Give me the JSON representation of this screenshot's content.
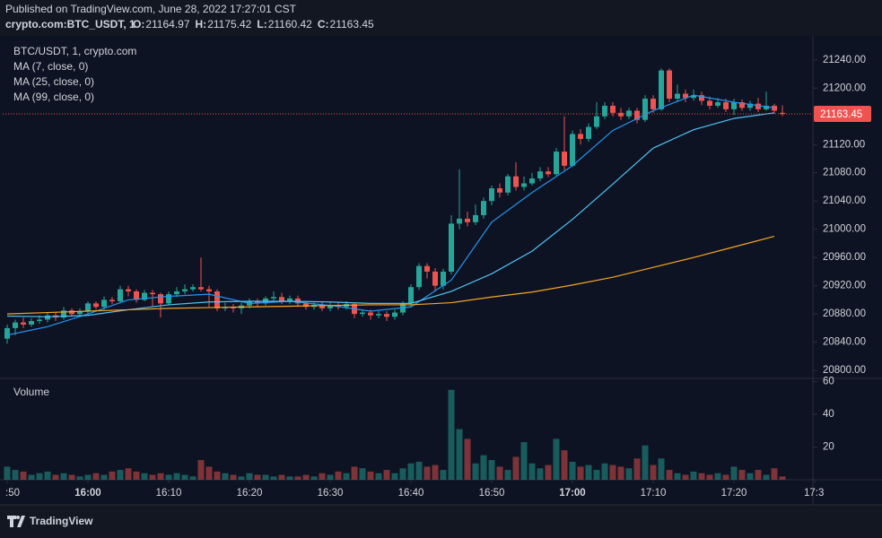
{
  "header": {
    "published": "Published on TradingView.com, June 28, 2022 17:27:01 CST",
    "symbol": "crypto.com:BTC_USDT, 1",
    "ohlc": [
      {
        "label": "O:",
        "value": 21164.97
      },
      {
        "label": "H:",
        "value": 21175.42
      },
      {
        "label": "L:",
        "value": 21160.42
      },
      {
        "label": "C:",
        "value": 21163.45
      }
    ]
  },
  "footer": {
    "logo": "TradingView"
  },
  "chart_data": {
    "type": "candlestick",
    "title": "BTC/USDT, 1, crypto.com",
    "volume_title": "Volume",
    "up_color": "#26a69a",
    "down_color": "#ef5350",
    "grid": false,
    "x": [
      "15:50",
      "15:51",
      "15:52",
      "15:53",
      "15:54",
      "15:55",
      "15:56",
      "15:57",
      "15:58",
      "15:59",
      "16:00",
      "16:01",
      "16:02",
      "16:03",
      "16:04",
      "16:05",
      "16:06",
      "16:07",
      "16:08",
      "16:09",
      "16:10",
      "16:11",
      "16:12",
      "16:13",
      "16:14",
      "16:15",
      "16:16",
      "16:17",
      "16:18",
      "16:19",
      "16:20",
      "16:21",
      "16:22",
      "16:23",
      "16:24",
      "16:25",
      "16:26",
      "16:27",
      "16:28",
      "16:29",
      "16:30",
      "16:31",
      "16:32",
      "16:33",
      "16:34",
      "16:35",
      "16:36",
      "16:37",
      "16:38",
      "16:39",
      "16:40",
      "16:41",
      "16:42",
      "16:43",
      "16:44",
      "16:45",
      "16:46",
      "16:47",
      "16:48",
      "16:49",
      "16:50",
      "16:51",
      "16:52",
      "16:53",
      "16:54",
      "16:55",
      "16:56",
      "16:57",
      "16:58",
      "16:59",
      "17:00",
      "17:01",
      "17:02",
      "17:03",
      "17:04",
      "17:05",
      "17:06",
      "17:07",
      "17:08",
      "17:09",
      "17:10",
      "17:11",
      "17:12",
      "17:13",
      "17:14",
      "17:15",
      "17:16",
      "17:17",
      "17:18",
      "17:19",
      "17:20",
      "17:21",
      "17:22",
      "17:23",
      "17:24",
      "17:25",
      "17:26"
    ],
    "open": [
      20845,
      20860,
      20868,
      20865,
      20870,
      20872,
      20878,
      20875,
      20885,
      20880,
      20884,
      20895,
      20890,
      20900,
      20898,
      20915,
      20912,
      20900,
      20910,
      20908,
      20895,
      20908,
      20912,
      20915,
      20918,
      20915,
      20912,
      20888,
      20890,
      20888,
      20892,
      20898,
      20895,
      20902,
      20904,
      20898,
      20902,
      20895,
      20890,
      20893,
      20888,
      20892,
      20890,
      20894,
      20880,
      20882,
      20878,
      20880,
      20876,
      20882,
      20895,
      20918,
      20948,
      20940,
      20920,
      20940,
      21008,
      21015,
      21010,
      21020,
      21040,
      21058,
      21052,
      21075,
      21060,
      21065,
      21072,
      21082,
      21078,
      21110,
      21090,
      21135,
      21128,
      21145,
      21160,
      21175,
      21165,
      21160,
      21168,
      21155,
      21185,
      21170,
      21225,
      21185,
      21192,
      21186,
      21190,
      21182,
      21175,
      21180,
      21170,
      21180,
      21172,
      21178,
      21170,
      21175,
      21164.97
    ],
    "high": [
      20865,
      20872,
      20875,
      20874,
      20878,
      20882,
      20882,
      20890,
      20888,
      20888,
      20898,
      20898,
      20905,
      20904,
      20920,
      20920,
      20915,
      20914,
      20914,
      20910,
      20912,
      20918,
      20922,
      20922,
      20960,
      20920,
      20915,
      20896,
      20894,
      20896,
      20902,
      20902,
      20905,
      20912,
      20910,
      20906,
      20906,
      20898,
      20897,
      20898,
      20896,
      20896,
      20898,
      20896,
      20886,
      20886,
      20884,
      20884,
      20886,
      20898,
      20922,
      20952,
      20952,
      20945,
      20944,
      21020,
      21085,
      21025,
      21035,
      21045,
      21062,
      21065,
      21078,
      21095,
      21075,
      21080,
      21088,
      21088,
      21115,
      21160,
      21140,
      21142,
      21150,
      21180,
      21180,
      21180,
      21172,
      21172,
      21172,
      21190,
      21190,
      21228,
      21228,
      21205,
      21198,
      21198,
      21195,
      21188,
      21186,
      21185,
      21185,
      21184,
      21182,
      21186,
      21195,
      21178,
      21175.42
    ],
    "low": [
      20838,
      20850,
      20860,
      20862,
      20866,
      20868,
      20870,
      20872,
      20876,
      20876,
      20880,
      20886,
      20886,
      20894,
      20895,
      20905,
      20896,
      20898,
      20890,
      20875,
      20892,
      20904,
      20908,
      20912,
      20912,
      20890,
      20884,
      20884,
      20882,
      20880,
      20888,
      20890,
      20892,
      20898,
      20894,
      20894,
      20890,
      20886,
      20886,
      20884,
      20884,
      20886,
      20886,
      20874,
      20876,
      20872,
      20874,
      20870,
      20872,
      20878,
      20890,
      20914,
      20930,
      20912,
      20915,
      20936,
      21000,
      21004,
      21006,
      21015,
      21034,
      21045,
      21048,
      21055,
      21055,
      21062,
      21068,
      21074,
      21076,
      21084,
      21088,
      21120,
      21124,
      21142,
      21156,
      21160,
      21155,
      21156,
      21150,
      21152,
      21165,
      21168,
      21180,
      21180,
      21180,
      21182,
      21176,
      21170,
      21172,
      21166,
      21162,
      21168,
      21168,
      21166,
      21168,
      21164,
      21160.42
    ],
    "close": [
      20860,
      20868,
      20865,
      20870,
      20872,
      20878,
      20875,
      20885,
      20880,
      20884,
      20895,
      20890,
      20900,
      20898,
      20915,
      20912,
      20900,
      20910,
      20908,
      20895,
      20908,
      20912,
      20915,
      20918,
      20915,
      20912,
      20888,
      20890,
      20888,
      20892,
      20898,
      20895,
      20902,
      20904,
      20898,
      20902,
      20895,
      20890,
      20893,
      20888,
      20892,
      20890,
      20894,
      20880,
      20882,
      20878,
      20880,
      20876,
      20882,
      20895,
      20918,
      20948,
      20940,
      20920,
      20940,
      21008,
      21015,
      21010,
      21020,
      21040,
      21058,
      21052,
      21075,
      21060,
      21065,
      21072,
      21082,
      21078,
      21110,
      21090,
      21135,
      21128,
      21145,
      21160,
      21175,
      21165,
      21160,
      21168,
      21155,
      21185,
      21170,
      21225,
      21185,
      21192,
      21186,
      21190,
      21182,
      21175,
      21180,
      21170,
      21180,
      21172,
      21178,
      21170,
      21175,
      21168,
      21163.45
    ],
    "volume": [
      8,
      6,
      5,
      3,
      4,
      5,
      3,
      4,
      3,
      2,
      3,
      4,
      3,
      5,
      6,
      7,
      5,
      4,
      3,
      4,
      3,
      4,
      3,
      2,
      12,
      8,
      5,
      4,
      3,
      2,
      4,
      3,
      3,
      2,
      3,
      2,
      2,
      3,
      2,
      4,
      3,
      5,
      4,
      8,
      7,
      5,
      4,
      6,
      4,
      7,
      10,
      11,
      8,
      9,
      6,
      55,
      31,
      25,
      10,
      15,
      12,
      8,
      6,
      14,
      23,
      10,
      7,
      9,
      25,
      18,
      11,
      8,
      9,
      6,
      10,
      9,
      8,
      7,
      13,
      21,
      9,
      13,
      6,
      4,
      3,
      5,
      4,
      3,
      4,
      3,
      8,
      6,
      4,
      6,
      3,
      7,
      2
    ],
    "ma_series": [
      {
        "name": "MA (7, close, 0)",
        "color": "#2196f3",
        "x": [
          "15:50",
          "15:55",
          "16:00",
          "16:05",
          "16:10",
          "16:15",
          "16:20",
          "16:25",
          "16:30",
          "16:35",
          "16:40",
          "16:45",
          "16:50",
          "16:55",
          "17:00",
          "17:05",
          "17:10",
          "17:15",
          "17:20",
          "17:25"
        ],
        "values": [
          20850,
          20862,
          20880,
          20900,
          20905,
          20908,
          20895,
          20898,
          20892,
          20884,
          20890,
          20928,
          21010,
          21052,
          21090,
          21140,
          21168,
          21190,
          21180,
          21172
        ]
      },
      {
        "name": "MA (25, close, 0)",
        "color": "#4fc3f7",
        "x": [
          "15:50",
          "15:55",
          "16:00",
          "16:05",
          "16:10",
          "16:15",
          "16:20",
          "16:25",
          "16:30",
          "16:35",
          "16:40",
          "16:45",
          "16:50",
          "16:55",
          "17:00",
          "17:05",
          "17:10",
          "17:15",
          "17:20",
          "17:25"
        ],
        "values": [
          20877,
          20876,
          20878,
          20886,
          20893,
          20897,
          20898,
          20898,
          20897,
          20895,
          20895,
          20912,
          20937,
          20969,
          21014,
          21064,
          21115,
          21141,
          21157,
          21165
        ]
      },
      {
        "name": "MA (99, close, 0)",
        "color": "#f5a623",
        "x": [
          "15:50",
          "15:55",
          "16:00",
          "16:05",
          "16:10",
          "16:15",
          "16:20",
          "16:25",
          "16:30",
          "16:35",
          "16:40",
          "16:45",
          "16:50",
          "16:55",
          "17:00",
          "17:05",
          "17:10",
          "17:15",
          "17:20",
          "17:25"
        ],
        "values": [
          20880,
          20882,
          20884,
          20886,
          20888,
          20889,
          20890,
          20891,
          20892,
          20893,
          20893,
          20896,
          20904,
          20911,
          20921,
          20932,
          20946,
          20960,
          20975,
          20990
        ]
      }
    ],
    "ylim": [
      20790,
      21274
    ],
    "yticks": [
      {
        "value": 20800,
        "label": "20800.00"
      },
      {
        "value": 20840,
        "label": "20840.00"
      },
      {
        "value": 20880,
        "label": "20880.00"
      },
      {
        "value": 20920,
        "label": "20920.00"
      },
      {
        "value": 20960,
        "label": "20960.00"
      },
      {
        "value": 21000,
        "label": "21000.00"
      },
      {
        "value": 21040,
        "label": "21040.00"
      },
      {
        "value": 21080,
        "label": "21080.00"
      },
      {
        "value": 21120,
        "label": "21120.00"
      },
      {
        "value": 21160,
        "label": "21160.00"
      },
      {
        "value": 21200,
        "label": "21200.00"
      },
      {
        "value": 21240,
        "label": "21240.00"
      }
    ],
    "y2lim": [
      0,
      62
    ],
    "y2ticks": [
      20,
      40,
      60
    ],
    "xticks": [
      {
        "value": "15:50",
        "label": ":50"
      },
      "16:00",
      "16:10",
      "16:20",
      "16:30",
      "16:40",
      "16:50",
      "17:00",
      "17:10",
      "17:20",
      {
        "value": "17:30",
        "label": "17:3"
      }
    ]
  }
}
